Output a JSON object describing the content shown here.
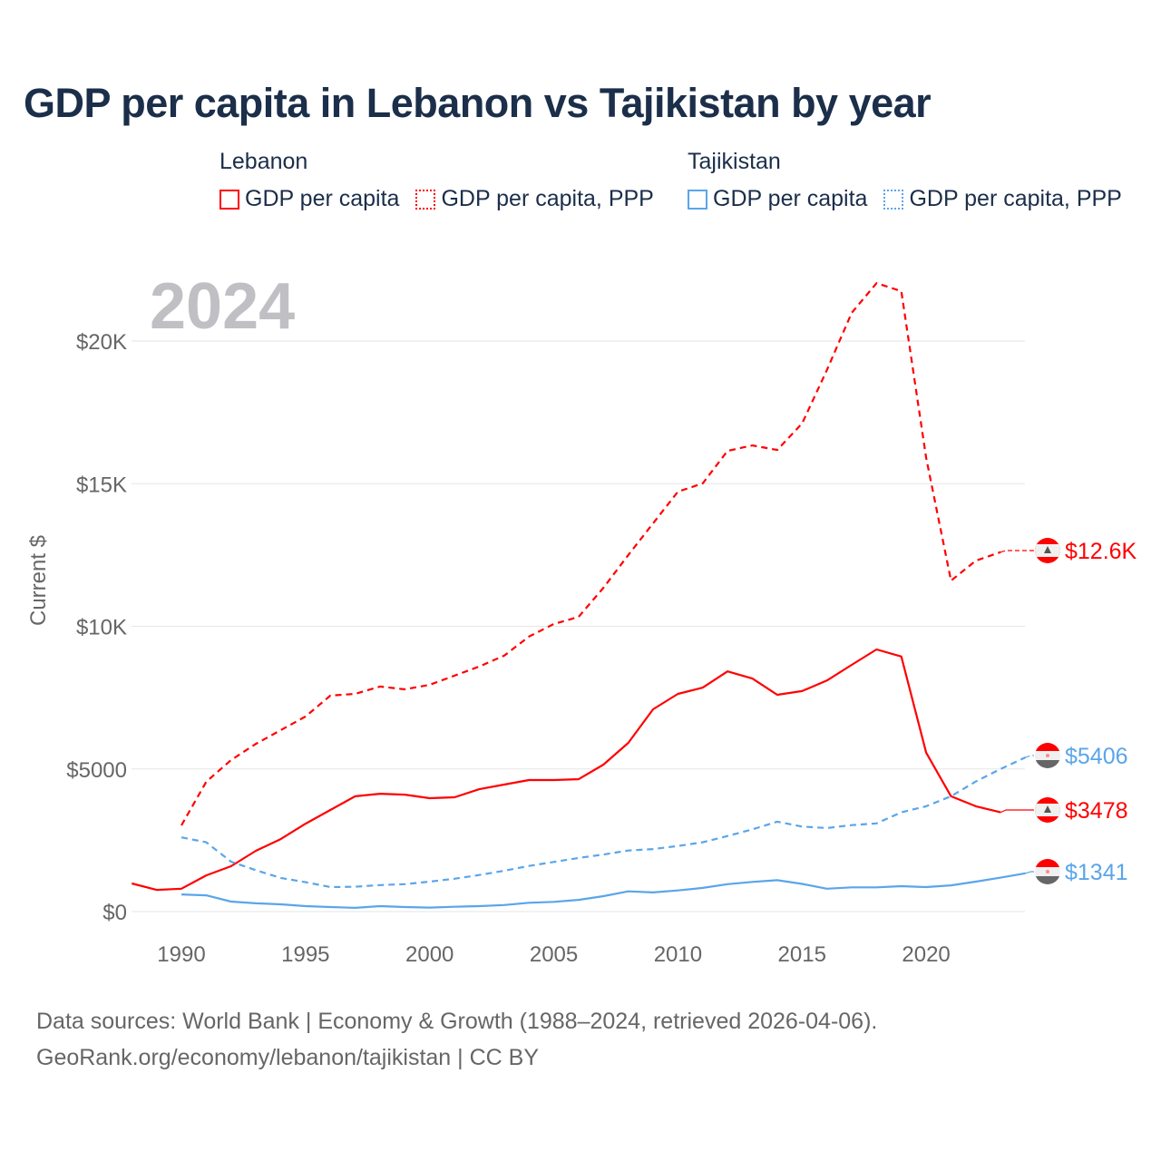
{
  "title": "GDP per capita in Lebanon vs Tajikistan by year",
  "legend": {
    "groups": [
      {
        "name": "Lebanon",
        "color": "#ff0000",
        "items": [
          "GDP per capita",
          "GDP per capita, PPP"
        ]
      },
      {
        "name": "Tajikistan",
        "color": "#5aa5ea",
        "items": [
          "GDP per capita",
          "GDP per capita, PPP"
        ]
      }
    ]
  },
  "footer": {
    "line1": "Data sources: World Bank | Economy & Growth (1988–2024, retrieved 2026-04-06).",
    "line2": "GeoRank.org/economy/lebanon/tajikistan | CC BY"
  },
  "chart_data": {
    "type": "line",
    "title": "GDP per capita in Lebanon vs Tajikistan by year",
    "year_label": "2024",
    "ylabel": "Current $",
    "xlim": [
      1988,
      2024
    ],
    "ylim": [
      0,
      22500
    ],
    "xticks": [
      1990,
      1995,
      2000,
      2005,
      2010,
      2015,
      2020
    ],
    "xtick_labels": [
      "1990",
      "1995",
      "2000",
      "2005",
      "2010",
      "2015",
      "2020"
    ],
    "yticks": [
      0,
      5000,
      10000,
      15000,
      20000
    ],
    "ytick_labels": [
      "$0",
      "$5000",
      "$10K",
      "$15K",
      "$20K"
    ],
    "grid": true,
    "series": [
      {
        "name": "Lebanon GDP per capita",
        "color": "#ff0000",
        "dash": false,
        "end_label": "$3478",
        "flag": "lebanon",
        "start": 1988,
        "values": [
          985,
          760,
          800,
          1270,
          1590,
          2130,
          2540,
          3080,
          3560,
          4040,
          4130,
          4100,
          3975,
          4005,
          4290,
          4450,
          4610,
          4610,
          4640,
          5150,
          5915,
          7090,
          7630,
          7850,
          8420,
          8170,
          7600,
          7730,
          8100,
          8650,
          9190,
          8940,
          5570,
          4040,
          3690,
          3478
        ]
      },
      {
        "name": "Lebanon GDP per capita, PPP",
        "color": "#ff0000",
        "dash": true,
        "end_label": "$12.6K",
        "flag": "lebanon",
        "start": 1990,
        "values": [
          3020,
          4550,
          5310,
          5880,
          6360,
          6840,
          7570,
          7630,
          7890,
          7790,
          7950,
          8270,
          8590,
          8970,
          9640,
          10080,
          10330,
          11350,
          12500,
          13610,
          14720,
          15010,
          16150,
          16340,
          16180,
          17110,
          18980,
          20990,
          22030,
          21750,
          15900,
          11600,
          12300,
          12600
        ]
      },
      {
        "name": "Tajikistan GDP per capita",
        "color": "#5aa5ea",
        "dash": false,
        "end_label": "$1341",
        "flag": "tajikistan",
        "start": 1990,
        "values": [
          600,
          570,
          350,
          290,
          255,
          190,
          160,
          130,
          190,
          160,
          140,
          170,
          190,
          230,
          310,
          340,
          410,
          540,
          710,
          670,
          740,
          830,
          960,
          1040,
          1100,
          970,
          800,
          850,
          850,
          890,
          860,
          920,
          1050,
          1190,
          1341
        ]
      },
      {
        "name": "Tajikistan GDP per capita, PPP",
        "color": "#5aa5ea",
        "dash": true,
        "end_label": "$5406",
        "flag": "tajikistan",
        "start": 1990,
        "values": [
          2600,
          2430,
          1750,
          1450,
          1180,
          1030,
          860,
          870,
          930,
          960,
          1050,
          1150,
          1280,
          1430,
          1600,
          1740,
          1880,
          2000,
          2140,
          2190,
          2300,
          2430,
          2650,
          2880,
          3150,
          2980,
          2930,
          3030,
          3090,
          3480,
          3690,
          4040,
          4560,
          5000,
          5406
        ]
      }
    ]
  }
}
